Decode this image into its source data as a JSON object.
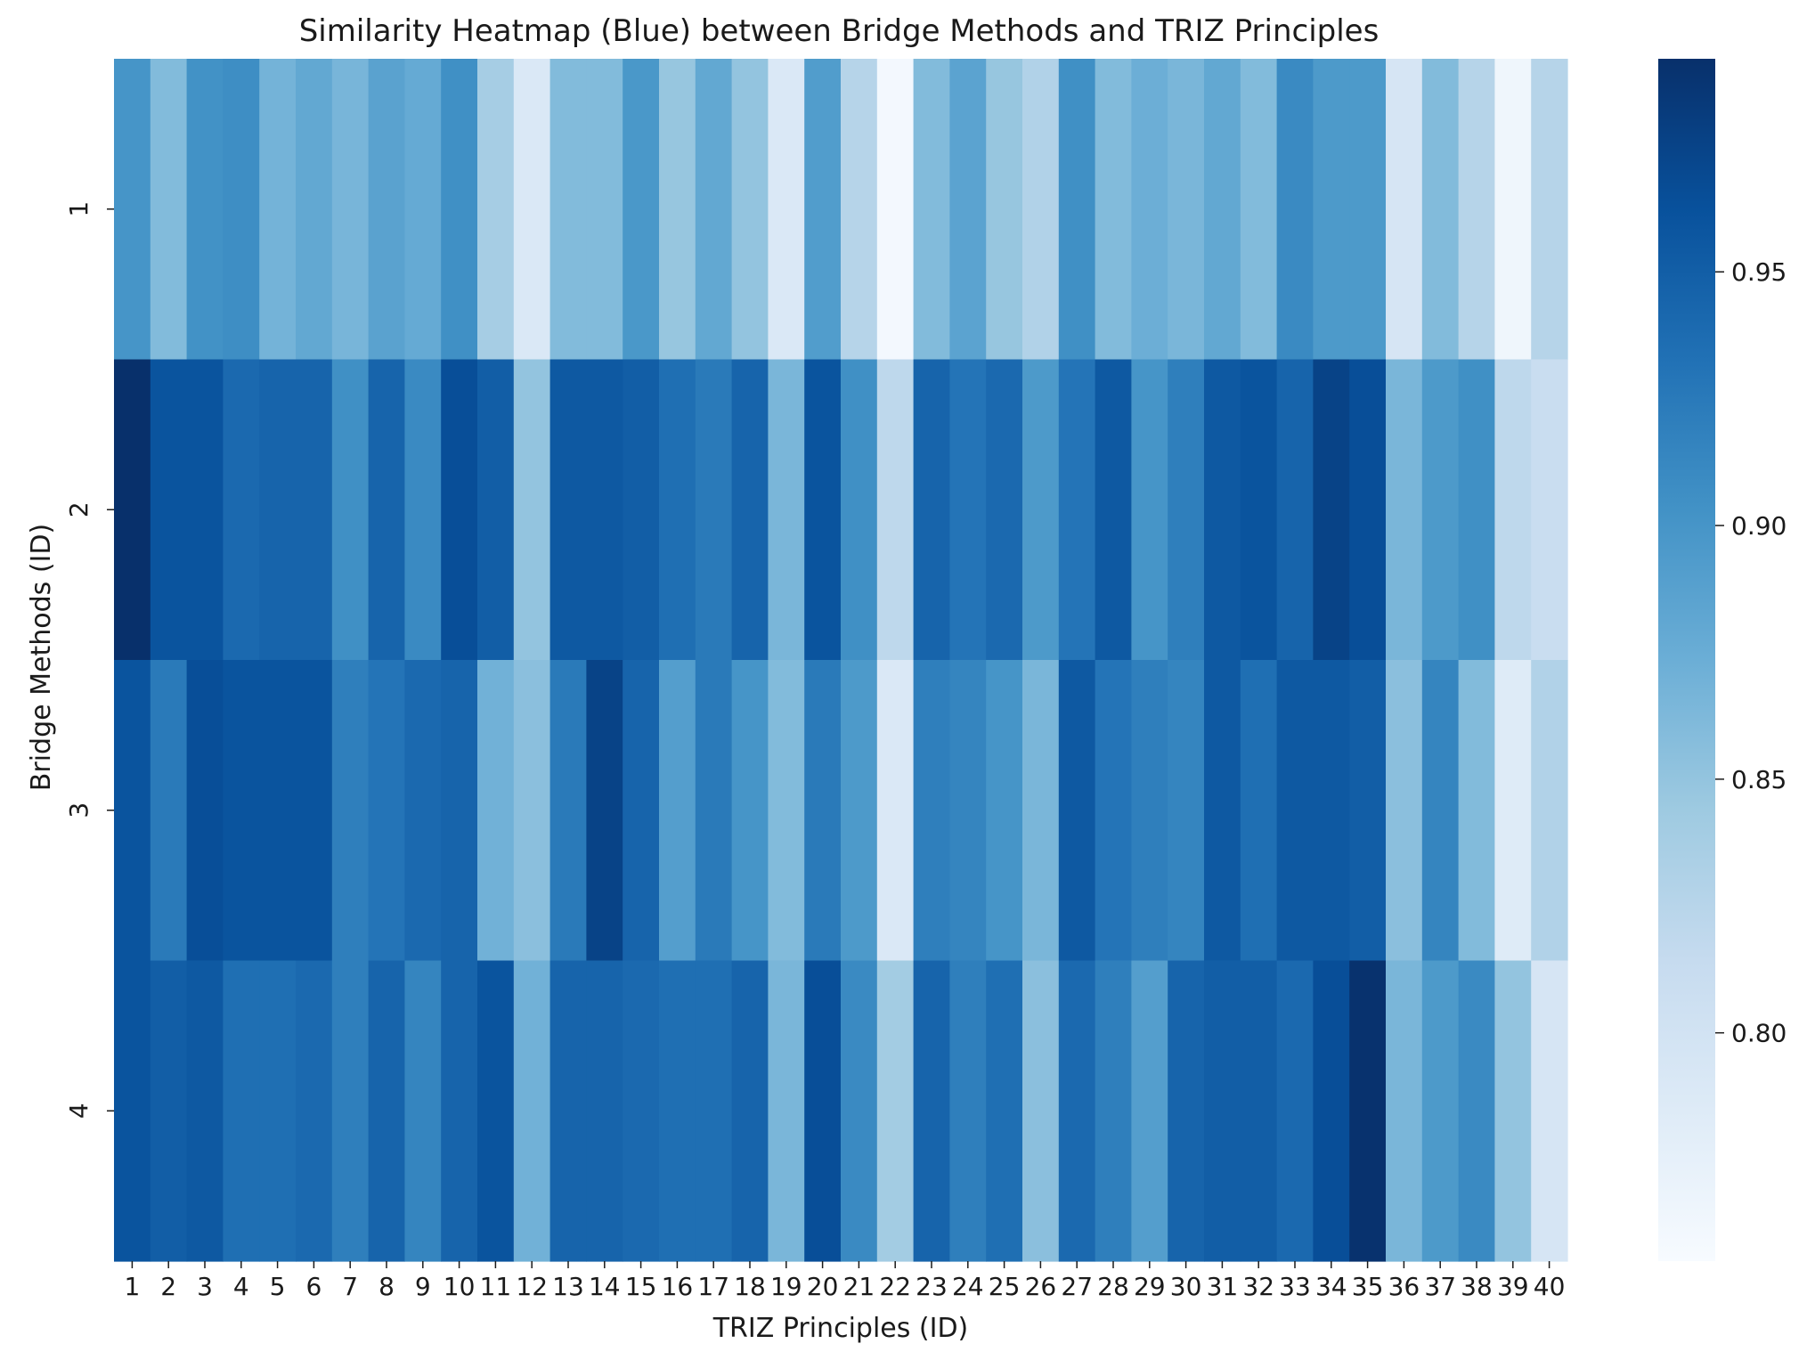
{
  "chart_data": {
    "type": "heatmap",
    "title": "Similarity Heatmap (Blue) between Bridge Methods and TRIZ Principles",
    "xlabel": "TRIZ Principles (ID)",
    "ylabel": "Bridge Methods (ID)",
    "x_categories": [
      "1",
      "2",
      "3",
      "4",
      "5",
      "6",
      "7",
      "8",
      "9",
      "10",
      "11",
      "12",
      "13",
      "14",
      "15",
      "16",
      "17",
      "18",
      "19",
      "20",
      "21",
      "22",
      "23",
      "24",
      "25",
      "26",
      "27",
      "28",
      "29",
      "30",
      "31",
      "32",
      "33",
      "34",
      "35",
      "36",
      "37",
      "38",
      "39",
      "40"
    ],
    "y_categories": [
      "1",
      "2",
      "3",
      "4"
    ],
    "colormap": "Blues",
    "color_range": [
      0.755,
      0.992
    ],
    "colorbar_ticks": [
      "0.80",
      "0.85",
      "0.90",
      "0.95"
    ],
    "values": [
      [
        0.9,
        0.86,
        0.903,
        0.907,
        0.868,
        0.88,
        0.866,
        0.886,
        0.878,
        0.905,
        0.838,
        0.79,
        0.86,
        0.86,
        0.897,
        0.848,
        0.88,
        0.85,
        0.79,
        0.892,
        0.826,
        0.76,
        0.86,
        0.885,
        0.848,
        0.83,
        0.905,
        0.86,
        0.873,
        0.865,
        0.88,
        0.86,
        0.91,
        0.895,
        0.895,
        0.795,
        0.86,
        0.826,
        0.765,
        0.826
      ],
      [
        0.992,
        0.96,
        0.96,
        0.94,
        0.945,
        0.945,
        0.905,
        0.945,
        0.91,
        0.965,
        0.95,
        0.85,
        0.955,
        0.955,
        0.95,
        0.935,
        0.925,
        0.945,
        0.865,
        0.96,
        0.905,
        0.82,
        0.945,
        0.93,
        0.94,
        0.895,
        0.93,
        0.955,
        0.9,
        0.92,
        0.955,
        0.96,
        0.945,
        0.975,
        0.965,
        0.865,
        0.895,
        0.905,
        0.82,
        0.81
      ],
      [
        0.96,
        0.925,
        0.965,
        0.96,
        0.96,
        0.96,
        0.92,
        0.93,
        0.94,
        0.945,
        0.87,
        0.855,
        0.925,
        0.975,
        0.945,
        0.89,
        0.925,
        0.9,
        0.86,
        0.925,
        0.895,
        0.79,
        0.92,
        0.915,
        0.9,
        0.865,
        0.955,
        0.93,
        0.92,
        0.915,
        0.955,
        0.935,
        0.955,
        0.955,
        0.95,
        0.855,
        0.915,
        0.86,
        0.785,
        0.83
      ],
      [
        0.96,
        0.95,
        0.955,
        0.935,
        0.935,
        0.94,
        0.92,
        0.945,
        0.915,
        0.945,
        0.96,
        0.87,
        0.945,
        0.945,
        0.94,
        0.935,
        0.935,
        0.945,
        0.865,
        0.965,
        0.91,
        0.84,
        0.945,
        0.92,
        0.935,
        0.855,
        0.94,
        0.92,
        0.89,
        0.945,
        0.95,
        0.95,
        0.94,
        0.965,
        0.99,
        0.865,
        0.895,
        0.91,
        0.85,
        0.795
      ]
    ],
    "grid": false,
    "legend": "colorbar-right"
  }
}
